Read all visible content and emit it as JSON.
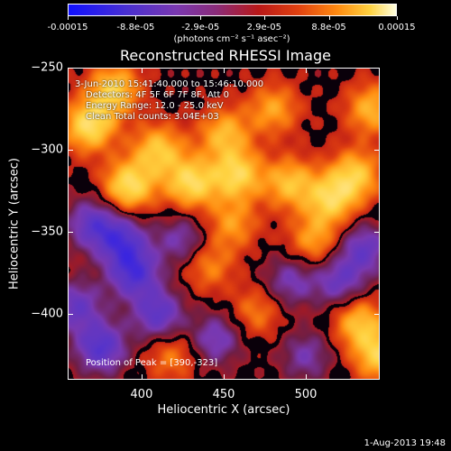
{
  "colors": {
    "colormap": [
      "#1010ff",
      "#5a35c8",
      "#7a38b0",
      "#6e1e46",
      "#b81818",
      "#e04010",
      "#ff8a10",
      "#ffd240",
      "#ffffe0"
    ],
    "background": "#000000",
    "foreground": "#ffffff"
  },
  "chart_data": {
    "type": "heatmap",
    "title": "Reconstructed RHESSI Image",
    "xlabel": "Heliocentric X (arcsec)",
    "ylabel": "Heliocentric Y (arcsec)",
    "xlim": [
      355,
      545
    ],
    "ylim": [
      -440,
      -250
    ],
    "xticks": [
      "400",
      "450",
      "500"
    ],
    "yticks": [
      "-250",
      "-300",
      "-350",
      "-400"
    ],
    "colorbar": {
      "tick_labels": [
        "-0.00015",
        "-8.8e-05",
        "-2.9e-05",
        "2.9e-05",
        "8.8e-05",
        "0.00015"
      ],
      "units": "(photons cm⁻² s⁻¹ asec⁻²)",
      "range": [
        -0.00015,
        0.00015
      ]
    },
    "annotations": [
      " 3-Jun-2010 15:41:40.000 to 15:46:10.000",
      "Detectors: 4F 5F 6F 7F 8F, Att 0",
      "Energy Range: 12.0 - 25.0 keV",
      "Clean     Total counts: 3.04E+03"
    ],
    "peak_label": "Position of Peak = [390,-323]",
    "peak": [
      390,
      -323
    ],
    "sources": [
      {
        "x": 368,
        "y": -285,
        "amp": 1.0
      },
      {
        "x": 383,
        "y": -263,
        "amp": 0.85
      },
      {
        "x": 392,
        "y": -322,
        "amp": 1.0
      },
      {
        "x": 410,
        "y": -300,
        "amp": 0.8
      },
      {
        "x": 430,
        "y": -320,
        "amp": 0.95
      },
      {
        "x": 450,
        "y": -290,
        "amp": 0.7
      },
      {
        "x": 458,
        "y": -315,
        "amp": 0.9
      },
      {
        "x": 480,
        "y": -275,
        "amp": 0.6
      },
      {
        "x": 490,
        "y": -320,
        "amp": 0.75
      },
      {
        "x": 515,
        "y": -330,
        "amp": 0.85
      },
      {
        "x": 530,
        "y": -315,
        "amp": 0.8
      },
      {
        "x": 540,
        "y": -275,
        "amp": 0.7
      },
      {
        "x": 505,
        "y": -355,
        "amp": 0.6
      },
      {
        "x": 455,
        "y": -345,
        "amp": 0.55
      },
      {
        "x": 440,
        "y": -370,
        "amp": 0.5
      },
      {
        "x": 470,
        "y": -398,
        "amp": 0.45
      },
      {
        "x": 532,
        "y": -405,
        "amp": 0.75
      },
      {
        "x": 545,
        "y": -425,
        "amp": 0.85
      },
      {
        "x": 418,
        "y": -425,
        "amp": 0.45
      },
      {
        "x": 395,
        "y": -375,
        "amp": -0.9
      },
      {
        "x": 370,
        "y": -345,
        "amp": -0.75
      },
      {
        "x": 375,
        "y": -420,
        "amp": -0.9
      },
      {
        "x": 410,
        "y": -400,
        "amp": -0.8
      },
      {
        "x": 445,
        "y": -415,
        "amp": -0.6
      },
      {
        "x": 490,
        "y": -380,
        "amp": -0.55
      },
      {
        "x": 520,
        "y": -380,
        "amp": -0.65
      },
      {
        "x": 535,
        "y": -360,
        "amp": -0.7
      },
      {
        "x": 360,
        "y": -395,
        "amp": -0.7
      },
      {
        "x": 500,
        "y": -425,
        "amp": -0.5
      },
      {
        "x": 425,
        "y": -355,
        "amp": -0.55
      },
      {
        "x": 388,
        "y": -355,
        "amp": -0.8
      }
    ]
  },
  "footer": {
    "timestamp": "1-Aug-2013 19:48"
  }
}
